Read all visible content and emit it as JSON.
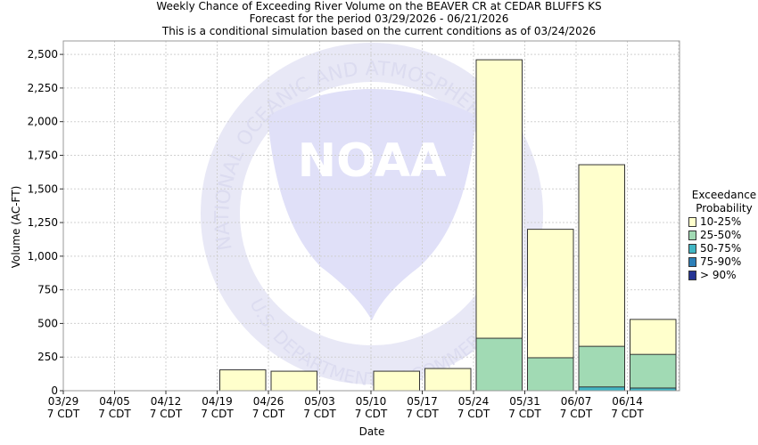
{
  "header": {
    "title": "Weekly Chance of Exceeding River Volume on the BEAVER CR at CEDAR BLUFFS KS",
    "subtitle1": "Forecast for the period 03/29/2026 - 06/21/2026",
    "subtitle2": "This is a conditional simulation based on the current conditions as of 03/24/2026"
  },
  "legend": {
    "title_line1": "Exceedance",
    "title_line2": "Probability",
    "items": [
      {
        "label": "10-25%",
        "color": "#ffffcc"
      },
      {
        "label": "25-50%",
        "color": "#a1dab4"
      },
      {
        "label": "50-75%",
        "color": "#41b6c4"
      },
      {
        "label": "75-90%",
        "color": "#2c7fb8"
      },
      {
        "label": "> 90%",
        "color": "#253494"
      }
    ]
  },
  "watermark": {
    "logo_text": "NOAA",
    "ring_top": "NATIONAL OCEANIC AND ATMOSPHERIC",
    "ring_bottom": "U.S. DEPARTMENT OF COMMERCE"
  },
  "chart_data": {
    "type": "bar",
    "xlabel": "Date",
    "ylabel": "Volume (AC-FT)",
    "ylim": [
      0,
      2600
    ],
    "yticks": [
      0,
      250,
      500,
      750,
      1000,
      1250,
      1500,
      1750,
      2000,
      2250,
      2500
    ],
    "ytick_labels": [
      "0",
      "250",
      "500",
      "750",
      "1,000",
      "1,250",
      "1,500",
      "1,750",
      "2,000",
      "2,250",
      "2,500"
    ],
    "categories": [
      "03/29",
      "04/05",
      "04/12",
      "04/19",
      "04/26",
      "05/03",
      "05/10",
      "05/17",
      "05/24",
      "05/31",
      "06/07",
      "06/14"
    ],
    "category_sublabel": "7 CDT",
    "grid": true,
    "series": [
      {
        "name": "10-25%",
        "values": [
          0,
          0,
          0,
          155,
          145,
          0,
          145,
          165,
          2460,
          1200,
          1680,
          530
        ]
      },
      {
        "name": "25-50%",
        "values": [
          0,
          0,
          0,
          0,
          0,
          0,
          0,
          0,
          390,
          245,
          330,
          270
        ]
      },
      {
        "name": "50-75%",
        "values": [
          0,
          0,
          0,
          0,
          0,
          0,
          0,
          0,
          0,
          0,
          28,
          20
        ]
      },
      {
        "name": "75-90%",
        "values": [
          0,
          0,
          0,
          0,
          0,
          0,
          0,
          0,
          0,
          0,
          0,
          0
        ]
      },
      {
        "name": "> 90%",
        "values": [
          0,
          0,
          0,
          0,
          0,
          0,
          0,
          0,
          0,
          0,
          0,
          0
        ]
      }
    ]
  }
}
